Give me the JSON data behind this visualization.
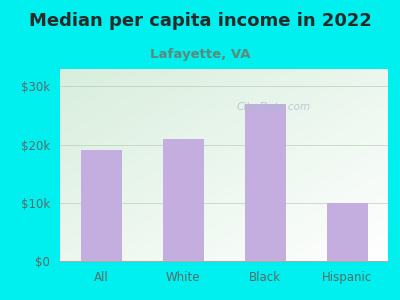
{
  "title": "Median per capita income in 2022",
  "subtitle": "Lafayette, VA",
  "categories": [
    "All",
    "White",
    "Black",
    "Hispanic"
  ],
  "values": [
    19000,
    21000,
    27000,
    10000
  ],
  "bar_color": "#c4aee0",
  "background_color": "#00EFEF",
  "title_color": "#2a2a2a",
  "subtitle_color": "#5a8a7a",
  "tick_label_color": "#5a6a6a",
  "yticks": [
    0,
    10000,
    20000,
    30000
  ],
  "ytick_labels": [
    "$0",
    "$10k",
    "$20k",
    "$30k"
  ],
  "ylim": [
    0,
    33000
  ],
  "watermark": "City-Data.com",
  "title_fontsize": 13,
  "subtitle_fontsize": 9.5,
  "tick_fontsize": 8.5
}
